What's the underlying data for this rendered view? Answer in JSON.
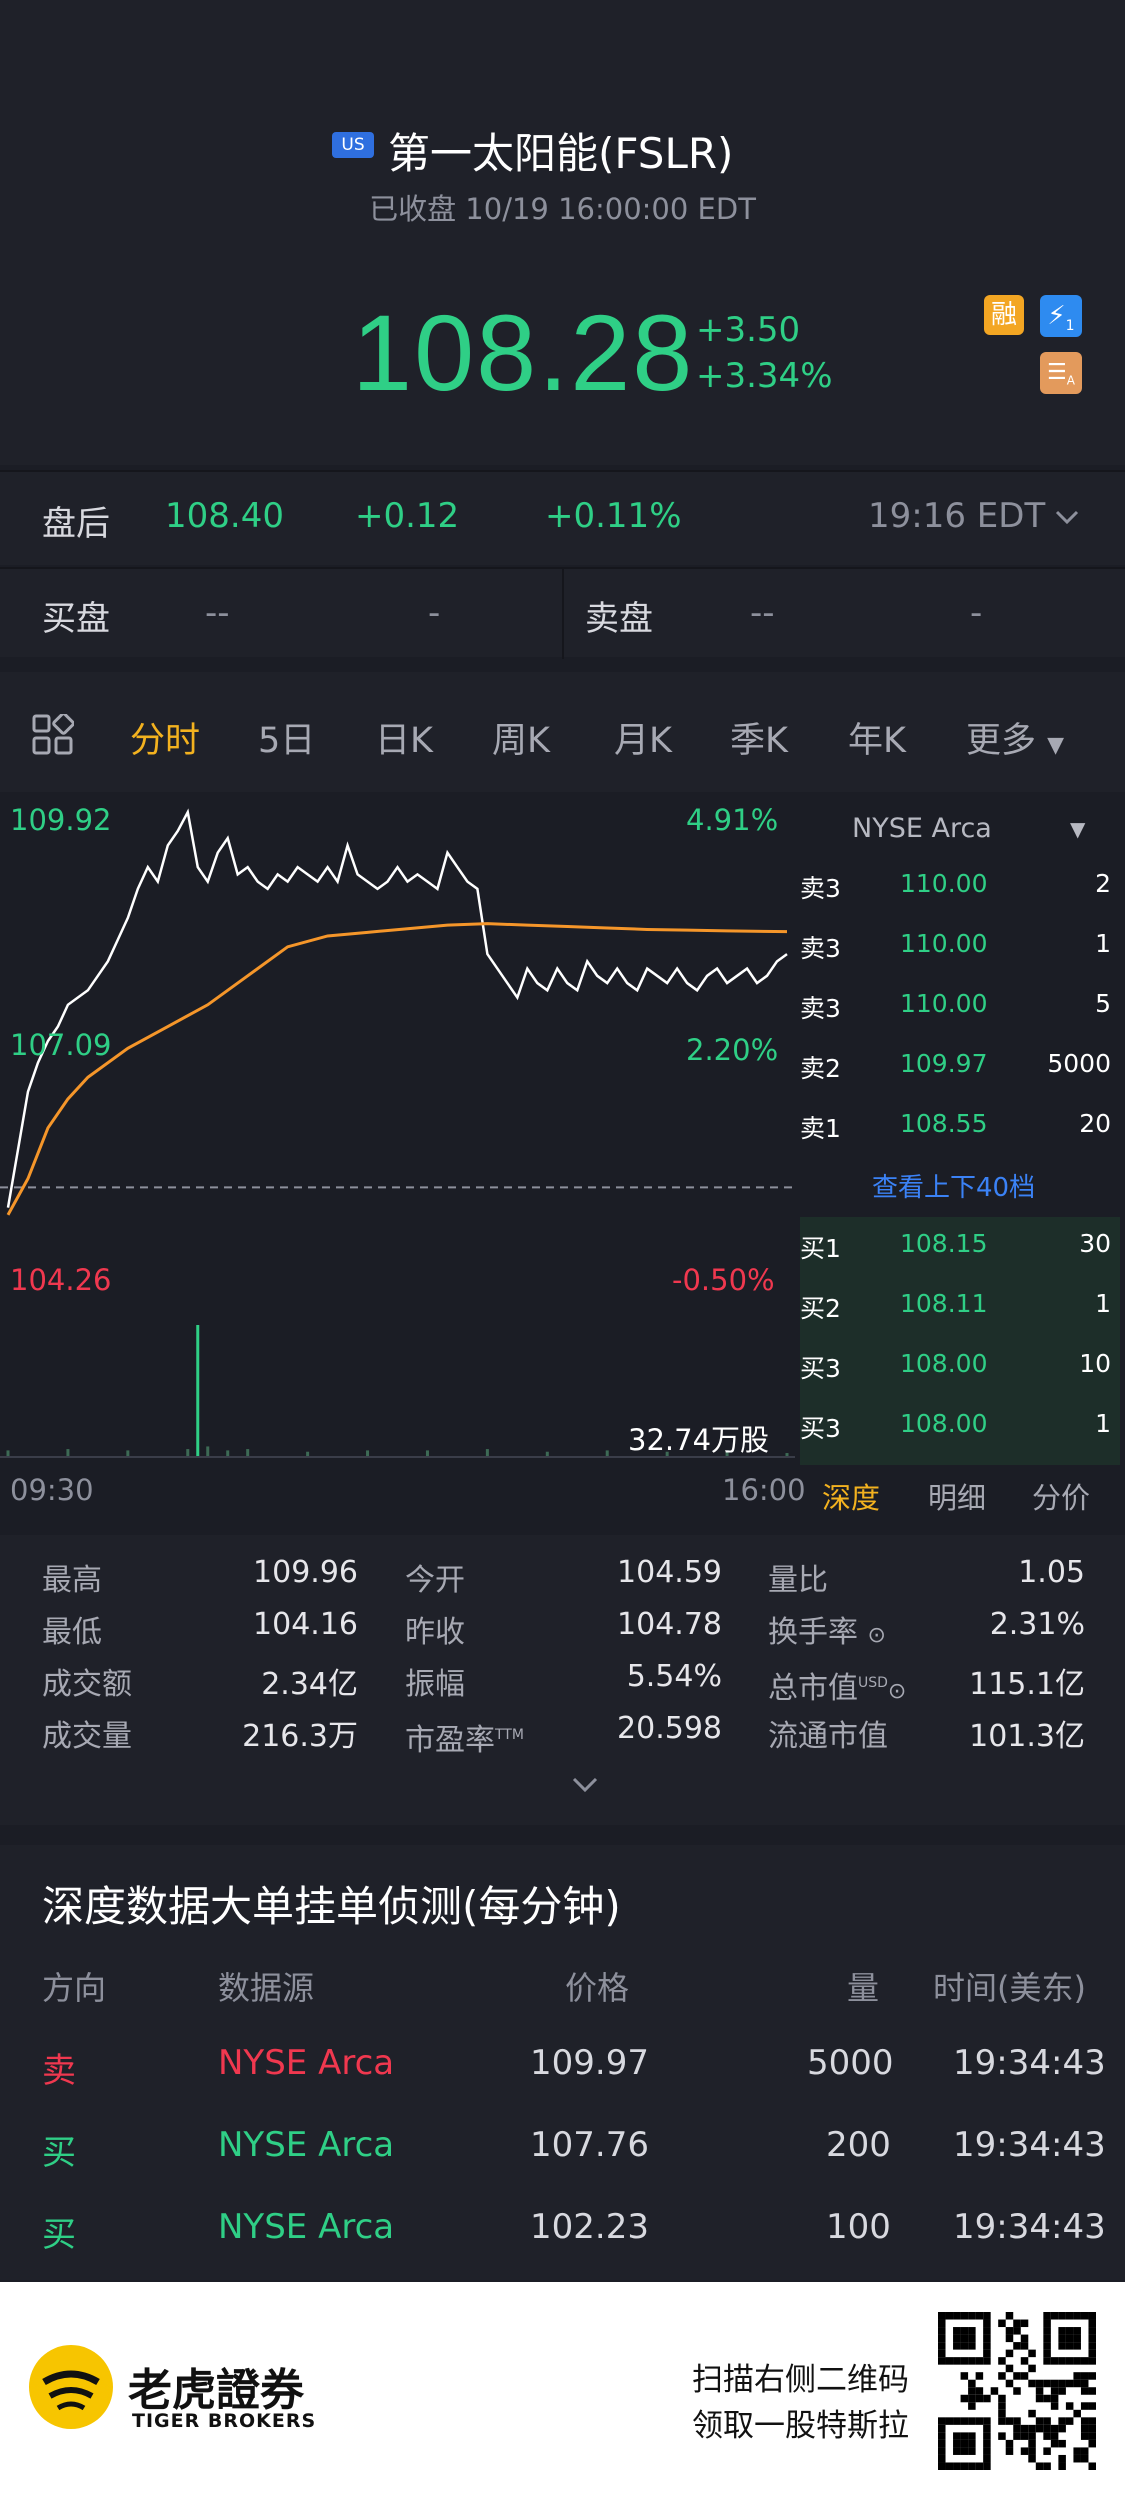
{
  "header": {
    "market_badge": "US",
    "title": "第一太阳能(FSLR)",
    "status": "已收盘 10/19 16:00:00 EDT",
    "price": "108.28",
    "change": "+3.50",
    "change_pct": "+3.34%",
    "badges": {
      "margin": "融",
      "flash": "1",
      "layer": "A"
    }
  },
  "after_hours": {
    "label": "盘后",
    "price": "108.40",
    "change": "+0.12",
    "change_pct": "+0.11%",
    "time": "19:16 EDT"
  },
  "quote_row": {
    "bid_label": "买盘",
    "bid_price": "--",
    "bid_size": "-",
    "ask_label": "卖盘",
    "ask_price": "--",
    "ask_size": "-"
  },
  "tabs": [
    "分时",
    "5日",
    "日K",
    "周K",
    "月K",
    "季K",
    "年K",
    "更多"
  ],
  "active_tab": "分时",
  "chart_data": {
    "type": "line",
    "y_axis_left": [
      "109.92",
      "107.09",
      "104.26"
    ],
    "y_axis_right": [
      "4.91%",
      "2.20%",
      "-0.50%"
    ],
    "x_axis": [
      "09:30",
      "16:00"
    ],
    "ylim": [
      104.26,
      109.92
    ],
    "prev_close": 104.78,
    "volume_label": "32.74万股",
    "series": [
      {
        "color": "#ffffff",
        "x": [
          0,
          5,
          10,
          15,
          20,
          25,
          30,
          35,
          40,
          45,
          50,
          55,
          60,
          65,
          70,
          75,
          80,
          85,
          90,
          95,
          100,
          105,
          110,
          115,
          120,
          125,
          130,
          135,
          140,
          145,
          150,
          155,
          160,
          165,
          170,
          175,
          180,
          185,
          190,
          195,
          200,
          205,
          210,
          215,
          220,
          225,
          230,
          235,
          240,
          245,
          250,
          255,
          260,
          265,
          270,
          275,
          280,
          285,
          290,
          295,
          300,
          305,
          310,
          315,
          320,
          325,
          330,
          335,
          340,
          345,
          350,
          355,
          360,
          365,
          370,
          375,
          380,
          385,
          390
        ],
        "values": [
          104.5,
          105.3,
          106.1,
          106.5,
          106.8,
          107.0,
          107.3,
          107.4,
          107.5,
          107.7,
          107.9,
          108.2,
          108.5,
          108.9,
          109.2,
          109.0,
          109.5,
          109.7,
          109.96,
          109.2,
          109.0,
          109.4,
          109.6,
          109.1,
          109.2,
          109.0,
          108.9,
          109.1,
          109.0,
          109.2,
          109.1,
          109.0,
          109.2,
          109.0,
          109.5,
          109.1,
          109.0,
          108.9,
          109.0,
          109.2,
          109.0,
          109.1,
          109.0,
          108.9,
          109.4,
          109.2,
          109.0,
          108.9,
          108.0,
          107.8,
          107.6,
          107.4,
          107.8,
          107.6,
          107.5,
          107.8,
          107.6,
          107.5,
          107.9,
          107.7,
          107.6,
          107.8,
          107.6,
          107.5,
          107.8,
          107.7,
          107.6,
          107.8,
          107.6,
          107.5,
          107.7,
          107.8,
          107.6,
          107.7,
          107.8,
          107.6,
          107.7,
          107.9,
          108.0
        ]
      },
      {
        "color": "#f5962a",
        "x": [
          0,
          10,
          20,
          30,
          40,
          60,
          80,
          100,
          120,
          140,
          160,
          180,
          200,
          220,
          240,
          260,
          280,
          300,
          320,
          340,
          360,
          390
        ],
        "values": [
          104.4,
          104.9,
          105.6,
          106.0,
          106.3,
          106.7,
          107.0,
          107.3,
          107.7,
          108.1,
          108.25,
          108.3,
          108.35,
          108.4,
          108.42,
          108.4,
          108.38,
          108.36,
          108.34,
          108.33,
          108.32,
          108.31
        ]
      }
    ],
    "volume": {
      "x": [
        0,
        30,
        60,
        90,
        95,
        100,
        110,
        120,
        150,
        180,
        210,
        240,
        270,
        300,
        330,
        360,
        390
      ],
      "values": [
        0.05,
        0.06,
        0.05,
        0.06,
        1.0,
        0.08,
        0.05,
        0.06,
        0.04,
        0.05,
        0.05,
        0.06,
        0.04,
        0.05,
        0.04,
        0.05,
        0.03
      ]
    }
  },
  "order_book": {
    "exchange": "NYSE Arca",
    "asks": [
      {
        "label": "卖3",
        "price": "110.00",
        "size": "2"
      },
      {
        "label": "卖3",
        "price": "110.00",
        "size": "1"
      },
      {
        "label": "卖3",
        "price": "110.00",
        "size": "5"
      },
      {
        "label": "卖2",
        "price": "109.97",
        "size": "5000"
      },
      {
        "label": "卖1",
        "price": "108.55",
        "size": "20"
      }
    ],
    "view_more": "查看上下40档",
    "bids": [
      {
        "label": "买1",
        "price": "108.15",
        "size": "30"
      },
      {
        "label": "买2",
        "price": "108.11",
        "size": "1"
      },
      {
        "label": "买3",
        "price": "108.00",
        "size": "10"
      },
      {
        "label": "买3",
        "price": "108.00",
        "size": "1"
      }
    ],
    "tabs": [
      "深度",
      "明细",
      "分价"
    ],
    "active_tab": "深度"
  },
  "stats": {
    "col1": [
      {
        "label": "最高",
        "value": "109.96"
      },
      {
        "label": "最低",
        "value": "104.16"
      },
      {
        "label": "成交额",
        "value": "2.34亿"
      },
      {
        "label": "成交量",
        "value": "216.3万"
      }
    ],
    "col2": [
      {
        "label": "今开",
        "value": "104.59"
      },
      {
        "label": "昨收",
        "value": "104.78"
      },
      {
        "label": "振幅",
        "value": "5.54%"
      },
      {
        "label": "市盈率",
        "sup": "TTM",
        "value": "20.598"
      }
    ],
    "col3": [
      {
        "label": "量比",
        "value": "1.05"
      },
      {
        "label": "换手率",
        "value": "2.31%"
      },
      {
        "label": "总市值",
        "sup": "USD",
        "value": "115.1亿"
      },
      {
        "label": "流通市值",
        "value": "101.3亿"
      }
    ]
  },
  "depth": {
    "title": "深度数据大单挂单侦测(每分钟)",
    "headers": [
      "方向",
      "数据源",
      "价格",
      "量",
      "时间(美东)"
    ],
    "rows": [
      {
        "dir": "卖",
        "source": "NYSE Arca",
        "price": "109.97",
        "qty": "5000",
        "time": "19:34:43",
        "color": "#f0384f"
      },
      {
        "dir": "买",
        "source": "NYSE Arca",
        "price": "107.76",
        "qty": "200",
        "time": "19:34:43",
        "color": "#2fcf86"
      },
      {
        "dir": "买",
        "source": "NYSE Arca",
        "price": "102.23",
        "qty": "100",
        "time": "19:34:43",
        "color": "#2fcf86"
      }
    ]
  },
  "footer": {
    "brand_cn": "老虎證券",
    "brand_en": "TIGER BROKERS",
    "promo_line1": "扫描右侧二维码",
    "promo_line2": "领取一股特斯拉"
  }
}
